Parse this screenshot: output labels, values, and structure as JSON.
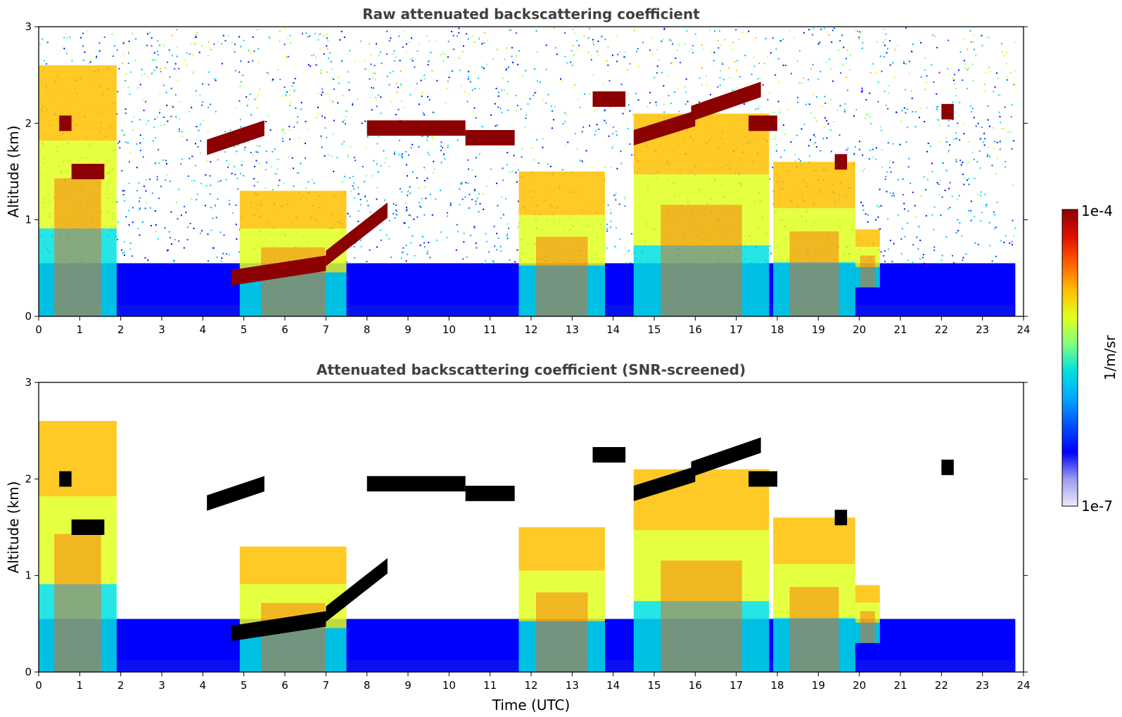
{
  "colors": {
    "background": "#ffffff",
    "frame": "#000000",
    "title": "#404040",
    "cloud_saturated_raw": "#8b0000",
    "cloud_saturated_screened": "#000000",
    "colormap": [
      "#ebebf8",
      "#9a9cf0",
      "#0000ff",
      "#0050ff",
      "#00a8ff",
      "#00e0e0",
      "#7fff7f",
      "#e0ff20",
      "#ffc000",
      "#ff6000",
      "#e01000",
      "#8b0000"
    ]
  },
  "chart_data": [
    {
      "type": "heatmap",
      "title": "Raw attenuated backscattering coefficient",
      "xlabel": "",
      "ylabel": "Altitude (km)",
      "xlim": [
        0,
        24
      ],
      "ylim": [
        0,
        3
      ],
      "x_ticks": [
        "0",
        "1",
        "2",
        "3",
        "4",
        "5",
        "6",
        "7",
        "8",
        "9",
        "10",
        "11",
        "12",
        "13",
        "14",
        "15",
        "16",
        "17",
        "18",
        "19",
        "20",
        "21",
        "22",
        "23",
        "24"
      ],
      "y_ticks": [
        "0",
        "1",
        "2",
        "3"
      ],
      "data_end_hour": 23.8,
      "noise_above_background": true,
      "cloud_layers": [
        {
          "x": [
            0.5,
            0.8
          ],
          "y": 2.0
        },
        {
          "x": [
            0.8,
            1.6
          ],
          "y": 1.5
        },
        {
          "x": [
            4.1,
            5.5
          ],
          "y": [
            1.75,
            1.95
          ]
        },
        {
          "x": [
            4.7,
            7.0
          ],
          "y": [
            0.4,
            0.55
          ]
        },
        {
          "x": [
            7.0,
            8.5
          ],
          "y": [
            0.6,
            1.1
          ]
        },
        {
          "x": [
            8.0,
            10.4
          ],
          "y": 1.95
        },
        {
          "x": [
            10.4,
            11.6
          ],
          "y": 1.85
        },
        {
          "x": [
            13.5,
            14.3
          ],
          "y": 2.25
        },
        {
          "x": [
            14.5,
            16.0
          ],
          "y": [
            1.85,
            2.05
          ]
        },
        {
          "x": [
            15.9,
            17.6
          ],
          "y": [
            2.1,
            2.35
          ]
        },
        {
          "x": [
            17.3,
            18.0
          ],
          "y": 2.0
        },
        {
          "x": [
            19.4,
            19.7
          ],
          "y": 1.6
        },
        {
          "x": [
            22.0,
            22.3
          ],
          "y": 2.12
        }
      ],
      "aerosol_regions": [
        {
          "x": [
            0.0,
            1.9
          ],
          "y": [
            0.0,
            2.6
          ]
        },
        {
          "x": [
            4.9,
            7.5
          ],
          "y": [
            0.0,
            1.3
          ]
        },
        {
          "x": [
            11.7,
            13.8
          ],
          "y": [
            0.0,
            1.5
          ]
        },
        {
          "x": [
            14.5,
            17.8
          ],
          "y": [
            0.0,
            2.1
          ]
        },
        {
          "x": [
            17.9,
            19.9
          ],
          "y": [
            0.0,
            1.6
          ]
        },
        {
          "x": [
            19.9,
            20.5
          ],
          "y": [
            0.3,
            0.9
          ]
        }
      ]
    },
    {
      "type": "heatmap",
      "title": "Attenuated backscattering coefficient (SNR-screened)",
      "xlabel": "Time (UTC)",
      "ylabel": "Altitude (km)",
      "xlim": [
        0,
        24
      ],
      "ylim": [
        0,
        3
      ],
      "x_ticks": [
        "0",
        "1",
        "2",
        "3",
        "4",
        "5",
        "6",
        "7",
        "8",
        "9",
        "10",
        "11",
        "12",
        "13",
        "14",
        "15",
        "16",
        "17",
        "18",
        "19",
        "20",
        "21",
        "22",
        "23",
        "24"
      ],
      "y_ticks": [
        "0",
        "1",
        "2",
        "3"
      ],
      "data_end_hour": 23.8,
      "noise_above_background": false,
      "cloud_layers": [
        {
          "x": [
            0.5,
            0.8
          ],
          "y": 2.0
        },
        {
          "x": [
            0.8,
            1.6
          ],
          "y": 1.5
        },
        {
          "x": [
            4.1,
            5.5
          ],
          "y": [
            1.75,
            1.95
          ]
        },
        {
          "x": [
            4.7,
            7.0
          ],
          "y": [
            0.4,
            0.55
          ]
        },
        {
          "x": [
            7.0,
            8.5
          ],
          "y": [
            0.6,
            1.1
          ]
        },
        {
          "x": [
            8.0,
            10.4
          ],
          "y": 1.95
        },
        {
          "x": [
            10.4,
            11.6
          ],
          "y": 1.85
        },
        {
          "x": [
            13.5,
            14.3
          ],
          "y": 2.25
        },
        {
          "x": [
            14.5,
            16.0
          ],
          "y": [
            1.85,
            2.05
          ]
        },
        {
          "x": [
            15.9,
            17.6
          ],
          "y": [
            2.1,
            2.35
          ]
        },
        {
          "x": [
            17.3,
            18.0
          ],
          "y": 2.0
        },
        {
          "x": [
            19.4,
            19.7
          ],
          "y": 1.6
        },
        {
          "x": [
            22.0,
            22.3
          ],
          "y": 2.12
        }
      ],
      "aerosol_regions": [
        {
          "x": [
            0.0,
            1.9
          ],
          "y": [
            0.0,
            2.6
          ]
        },
        {
          "x": [
            4.9,
            7.5
          ],
          "y": [
            0.0,
            1.3
          ]
        },
        {
          "x": [
            11.7,
            13.8
          ],
          "y": [
            0.0,
            1.5
          ]
        },
        {
          "x": [
            14.5,
            17.8
          ],
          "y": [
            0.0,
            2.1
          ]
        },
        {
          "x": [
            17.9,
            19.9
          ],
          "y": [
            0.0,
            1.6
          ]
        },
        {
          "x": [
            19.9,
            20.5
          ],
          "y": [
            0.3,
            0.9
          ]
        }
      ]
    }
  ],
  "colorbar": {
    "label": "1/m/sr",
    "max_label": "1e-4",
    "min_label": "1e-7",
    "scale": "log",
    "range": [
      1e-07,
      0.0001
    ]
  }
}
